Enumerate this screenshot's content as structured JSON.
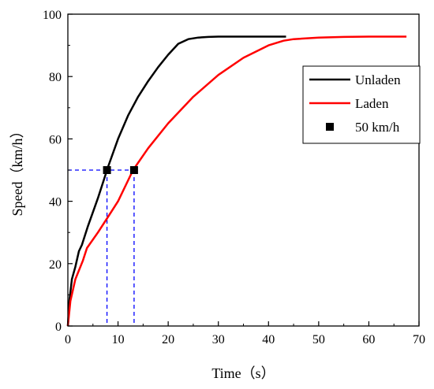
{
  "chart_data": {
    "type": "line",
    "xlabel": "Time（s）",
    "ylabel": "Speed（km/h）",
    "xlim": [
      0,
      70
    ],
    "ylim": [
      0,
      100
    ],
    "xticks": [
      "0",
      "10",
      "20",
      "30",
      "40",
      "50",
      "60",
      "70"
    ],
    "yticks": [
      "0",
      "20",
      "40",
      "60",
      "80",
      "100"
    ],
    "legend_position": "right",
    "series": [
      {
        "name": "Unladen",
        "color": "#000000",
        "x": [
          0,
          0.3,
          0.8,
          1.5,
          2.2,
          2.8,
          4,
          6,
          8,
          10,
          12,
          14,
          16,
          18,
          20,
          22,
          24,
          26,
          28,
          30,
          35,
          40,
          43.5
        ],
        "y": [
          0,
          8,
          15,
          19,
          24,
          26,
          32,
          41,
          51,
          60,
          67.5,
          73.5,
          78.5,
          83,
          87,
          90.5,
          92,
          92.5,
          92.7,
          92.8,
          92.8,
          92.8,
          92.8
        ]
      },
      {
        "name": "Laden",
        "color": "#ff0000",
        "x": [
          0,
          0.5,
          1.5,
          3,
          3.8,
          6,
          8,
          10,
          13,
          16,
          20,
          25,
          30,
          35,
          40,
          43,
          45,
          50,
          55,
          60,
          67.5
        ],
        "y": [
          0,
          8,
          15,
          21,
          25,
          30,
          35,
          40,
          50,
          57,
          65,
          73.5,
          80.5,
          86,
          90,
          91.5,
          92,
          92.5,
          92.7,
          92.8,
          92.8
        ]
      }
    ],
    "markers": {
      "name": "50 km/h",
      "color": "#000000",
      "points": [
        {
          "x": 7.8,
          "y": 50
        },
        {
          "x": 13.2,
          "y": 50
        }
      ]
    },
    "reference_line_color": "#0000ff"
  }
}
